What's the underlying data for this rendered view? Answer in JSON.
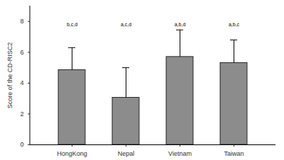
{
  "chart_data": {
    "type": "bar",
    "categories": [
      "HongKong",
      "Nepal",
      "Vietnam",
      "Taiwan"
    ],
    "values": [
      4.85,
      3.05,
      5.7,
      5.3
    ],
    "errors": [
      1.45,
      1.95,
      1.75,
      1.5
    ],
    "significance_labels": [
      "b,c,d",
      "a,c,d",
      "a,b,d",
      "a,b,c"
    ],
    "y_label": "Score of the CD-RISC2",
    "color": "#8c8c8c",
    "ylim": [
      0,
      9
    ],
    "yticks": [
      0,
      2,
      4,
      6,
      8
    ],
    "grid": false
  }
}
